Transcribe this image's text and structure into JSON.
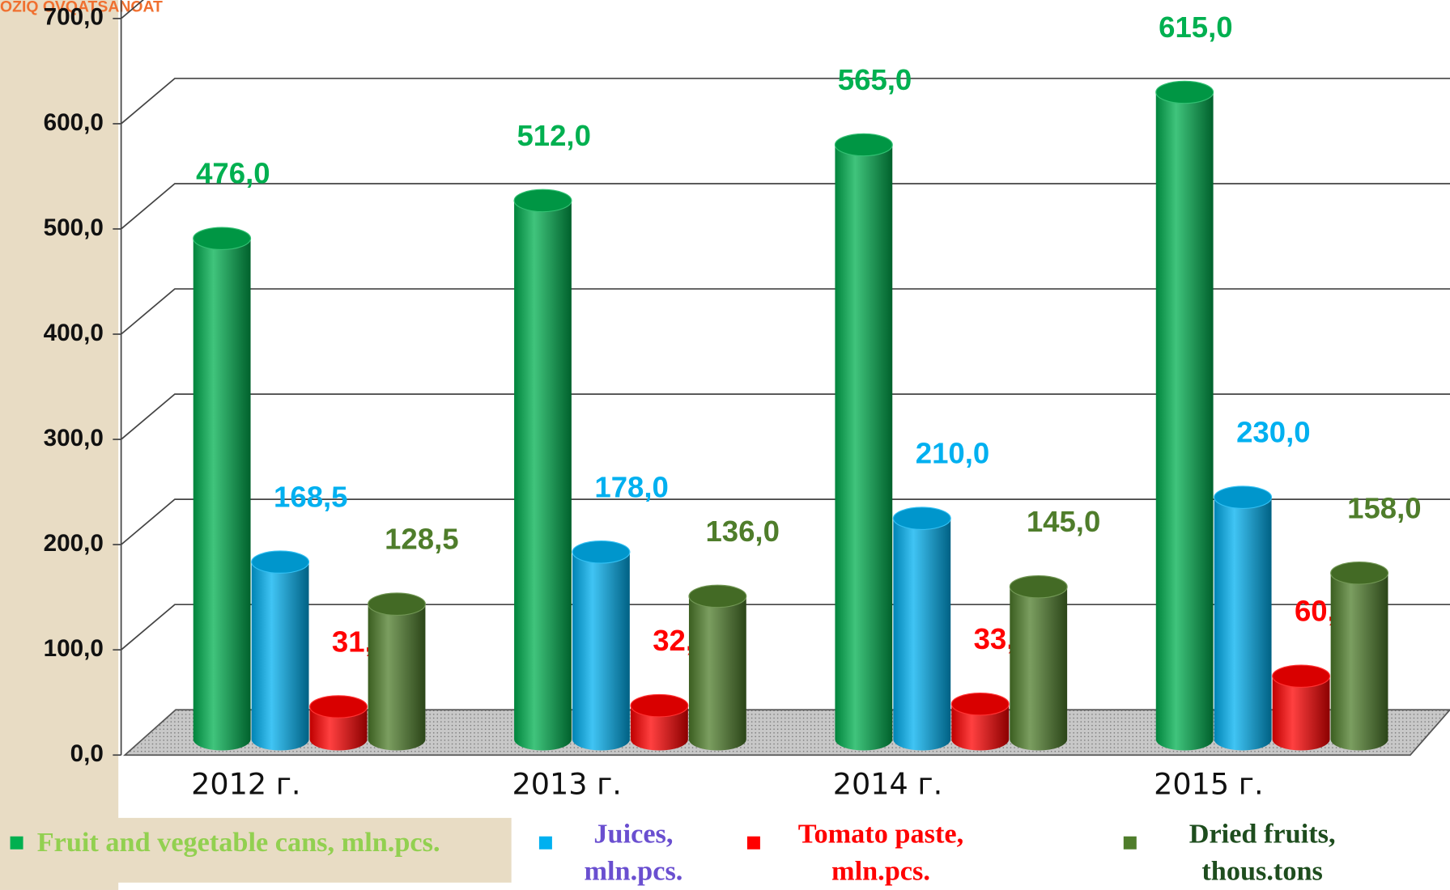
{
  "chart_data": {
    "type": "bar",
    "watermark": "OZIQ OVQATSANOAT",
    "categories": [
      "2012 г.",
      "2013 г.",
      "2014 г.",
      "2015 г."
    ],
    "series": [
      {
        "name": "Fruit and vegetable cans, mln.pcs.",
        "color": "#00b050",
        "values": [
          476,
          512,
          565,
          615
        ],
        "value_labels": [
          "476,0",
          "512,0",
          "565,0",
          "615,0"
        ]
      },
      {
        "name": "Juices, mln.pcs.",
        "color": "#00b0f0",
        "values": [
          168.5,
          178,
          210,
          230
        ],
        "value_labels": [
          "168,5",
          "178,0",
          "210,0",
          "230,0"
        ]
      },
      {
        "name": "Tomato paste, mln.pcs.",
        "color": "#ff0000",
        "values": [
          31,
          32,
          33.5,
          60
        ],
        "value_labels": [
          "31,0",
          "32,0",
          "33,5",
          "60,0"
        ]
      },
      {
        "name": "Dried fruits, thous.tons",
        "color": "#4f7d2b",
        "values": [
          128.5,
          136,
          145,
          158
        ],
        "value_labels": [
          "128,5",
          "136,0",
          "145,0",
          "158,0"
        ]
      }
    ],
    "ylim": [
      0,
      700
    ],
    "yticks": [
      {
        "value": 0,
        "label": "0,0"
      },
      {
        "value": 100,
        "label": "100,0"
      },
      {
        "value": 200,
        "label": "200,0"
      },
      {
        "value": 300,
        "label": "300,0"
      },
      {
        "value": 400,
        "label": "400,0"
      },
      {
        "value": 500,
        "label": "500,0"
      },
      {
        "value": 600,
        "label": "600,0"
      },
      {
        "value": 700,
        "label": "700,0"
      }
    ],
    "grid": true
  }
}
